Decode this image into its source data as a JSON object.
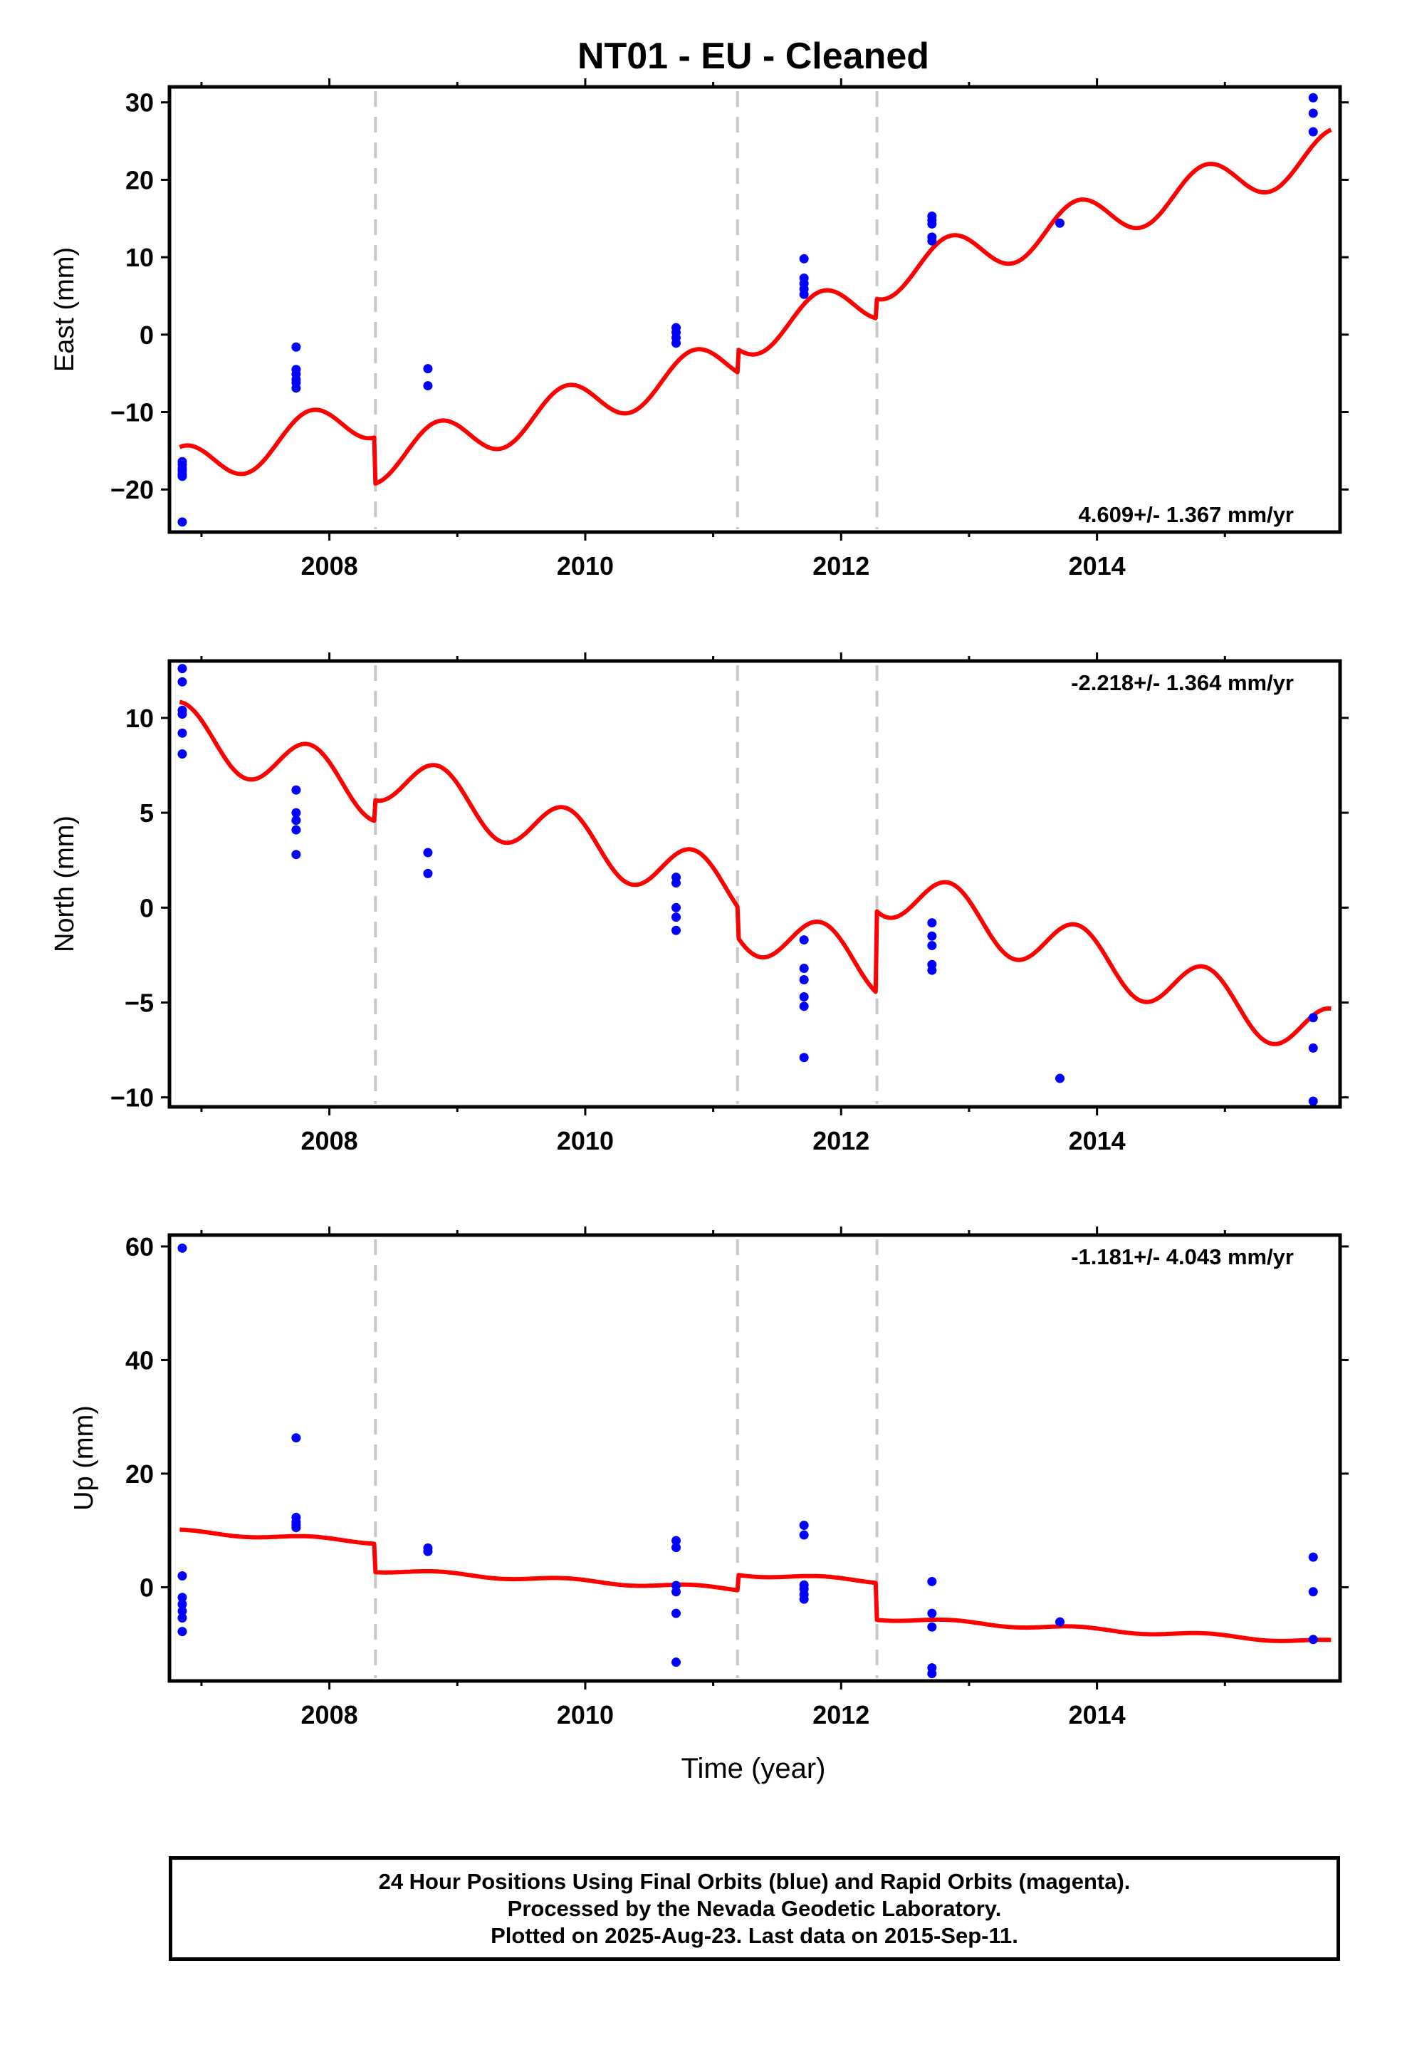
{
  "title": "NT01  - EU - Cleaned",
  "colors": {
    "fit": "#ff0000",
    "final_orbits": "#0000ff",
    "breaks": "#c8c8c8",
    "axes": "#000000"
  },
  "xlabel": "Time (year)",
  "caption": [
    "24 Hour Positions Using Final Orbits (blue) and Rapid Orbits (magenta).",
    "Processed by the Nevada Geodetic Laboratory.",
    "Plotted on 2025-Aug-23. Last data on 2015-Sep-11."
  ],
  "chart_data": [
    {
      "type": "scatter",
      "panel": "east",
      "ylabel": "East (mm)",
      "xlim": [
        2006.75,
        2015.9
      ],
      "ylim": [
        -25.5,
        32
      ],
      "xticks": [
        2008,
        2010,
        2012,
        2014
      ],
      "yticks": [
        -20,
        -10,
        0,
        10,
        20,
        30
      ],
      "rate_label": "4.609+/- 1.367 mm/yr",
      "rate_position": "bottom-right",
      "breaks": [
        2008.36,
        2011.19,
        2012.28
      ],
      "model": {
        "name": "fit",
        "start": 2006.83,
        "end": 2015.83,
        "value_at_start": -17.4,
        "rate": 4.609,
        "annual_amplitude": 2.9,
        "offsets": [
          [
            2008.36,
            -6.0
          ],
          [
            2011.19,
            3.0
          ],
          [
            2012.28,
            2.5
          ]
        ]
      },
      "points": [
        [
          2006.85,
          -16.4
        ],
        [
          2006.85,
          -16.8
        ],
        [
          2006.85,
          -17.3
        ],
        [
          2006.85,
          -17.6
        ],
        [
          2006.85,
          -18.0
        ],
        [
          2006.85,
          -18.3
        ],
        [
          2006.85,
          -24.2
        ],
        [
          2007.74,
          -1.6
        ],
        [
          2007.74,
          -4.5
        ],
        [
          2007.74,
          -5.1
        ],
        [
          2007.74,
          -5.8
        ],
        [
          2007.74,
          -6.2
        ],
        [
          2007.74,
          -6.9
        ],
        [
          2008.77,
          -4.4
        ],
        [
          2008.77,
          -6.6
        ],
        [
          2010.71,
          0.9
        ],
        [
          2010.71,
          0.3
        ],
        [
          2010.71,
          -0.4
        ],
        [
          2010.71,
          -1.1
        ],
        [
          2011.71,
          9.8
        ],
        [
          2011.71,
          7.3
        ],
        [
          2011.71,
          6.6
        ],
        [
          2011.71,
          5.9
        ],
        [
          2011.71,
          5.2
        ],
        [
          2012.71,
          15.3
        ],
        [
          2012.71,
          14.8
        ],
        [
          2012.71,
          14.3
        ],
        [
          2012.71,
          12.6
        ],
        [
          2012.71,
          12.1
        ],
        [
          2013.71,
          14.4
        ],
        [
          2015.69,
          30.6
        ],
        [
          2015.69,
          28.6
        ],
        [
          2015.69,
          26.2
        ]
      ]
    },
    {
      "type": "scatter",
      "panel": "north",
      "ylabel": "North (mm)",
      "xlim": [
        2006.75,
        2015.9
      ],
      "ylim": [
        -10.5,
        13
      ],
      "xticks": [
        2008,
        2010,
        2012,
        2014
      ],
      "yticks": [
        -10,
        -5,
        0,
        5,
        10
      ],
      "rate_label": "-2.218+/- 1.364 mm/yr",
      "rate_position": "top-right",
      "breaks": [
        2008.36,
        2011.19,
        2012.28
      ],
      "model": {
        "name": "fit",
        "start": 2006.83,
        "end": 2015.83,
        "value_at_start": 9.4,
        "rate": -2.218,
        "annual_amplitude": 1.45,
        "offsets": [
          [
            2008.36,
            1.1
          ],
          [
            2011.19,
            -1.6
          ],
          [
            2012.28,
            4.3
          ]
        ]
      },
      "points": [
        [
          2006.85,
          12.6
        ],
        [
          2006.85,
          11.9
        ],
        [
          2006.85,
          10.4
        ],
        [
          2006.85,
          10.2
        ],
        [
          2006.85,
          9.2
        ],
        [
          2006.85,
          8.1
        ],
        [
          2007.74,
          6.2
        ],
        [
          2007.74,
          5.0
        ],
        [
          2007.74,
          4.6
        ],
        [
          2007.74,
          4.1
        ],
        [
          2007.74,
          2.8
        ],
        [
          2008.77,
          2.9
        ],
        [
          2008.77,
          1.8
        ],
        [
          2010.71,
          1.6
        ],
        [
          2010.71,
          1.3
        ],
        [
          2010.71,
          0.0
        ],
        [
          2010.71,
          -0.5
        ],
        [
          2010.71,
          -1.2
        ],
        [
          2011.71,
          -1.7
        ],
        [
          2011.71,
          -3.2
        ],
        [
          2011.71,
          -3.8
        ],
        [
          2011.71,
          -4.7
        ],
        [
          2011.71,
          -5.2
        ],
        [
          2011.71,
          -7.9
        ],
        [
          2012.71,
          -0.8
        ],
        [
          2012.71,
          -1.5
        ],
        [
          2012.71,
          -2.0
        ],
        [
          2012.71,
          -3.0
        ],
        [
          2012.71,
          -3.3
        ],
        [
          2013.71,
          -9.0
        ],
        [
          2015.69,
          -5.8
        ],
        [
          2015.69,
          -7.4
        ],
        [
          2015.69,
          -10.2
        ]
      ]
    },
    {
      "type": "scatter",
      "panel": "up",
      "ylabel": "Up (mm)",
      "xlim": [
        2006.75,
        2015.9
      ],
      "ylim": [
        -16.5,
        62
      ],
      "xticks": [
        2008,
        2010,
        2012,
        2014
      ],
      "yticks": [
        0,
        20,
        40,
        60
      ],
      "rate_label": "-1.181+/- 4.043 mm/yr",
      "rate_position": "top-right",
      "breaks": [
        2008.36,
        2011.19,
        2012.28
      ],
      "model": {
        "name": "fit",
        "start": 2006.83,
        "end": 2015.83,
        "value_at_start": 9.8,
        "rate": -1.181,
        "annual_amplitude": 0.35,
        "offsets": [
          [
            2008.36,
            -5.0
          ],
          [
            2011.19,
            2.7
          ],
          [
            2012.28,
            -6.5
          ]
        ]
      },
      "points": [
        [
          2006.85,
          59.7
        ],
        [
          2006.85,
          2.0
        ],
        [
          2006.85,
          -1.8
        ],
        [
          2006.85,
          -3.0
        ],
        [
          2006.85,
          -4.2
        ],
        [
          2006.85,
          -5.4
        ],
        [
          2006.85,
          -7.8
        ],
        [
          2007.74,
          26.3
        ],
        [
          2007.74,
          12.3
        ],
        [
          2007.74,
          11.5
        ],
        [
          2007.74,
          11.0
        ],
        [
          2007.74,
          10.5
        ],
        [
          2008.77,
          6.9
        ],
        [
          2008.77,
          6.3
        ],
        [
          2010.71,
          8.2
        ],
        [
          2010.71,
          7.0
        ],
        [
          2010.71,
          0.3
        ],
        [
          2010.71,
          -0.8
        ],
        [
          2010.71,
          -4.6
        ],
        [
          2010.71,
          -13.2
        ],
        [
          2011.71,
          10.9
        ],
        [
          2011.71,
          9.2
        ],
        [
          2011.71,
          0.4
        ],
        [
          2011.71,
          -0.3
        ],
        [
          2011.71,
          -1.3
        ],
        [
          2011.71,
          -2.1
        ],
        [
          2012.71,
          1.0
        ],
        [
          2012.71,
          -4.6
        ],
        [
          2012.71,
          -7.0
        ],
        [
          2012.71,
          -14.2
        ],
        [
          2012.71,
          -15.2
        ],
        [
          2013.71,
          -6.1
        ],
        [
          2015.69,
          5.3
        ],
        [
          2015.69,
          -0.8
        ],
        [
          2015.69,
          -9.2
        ]
      ]
    }
  ]
}
